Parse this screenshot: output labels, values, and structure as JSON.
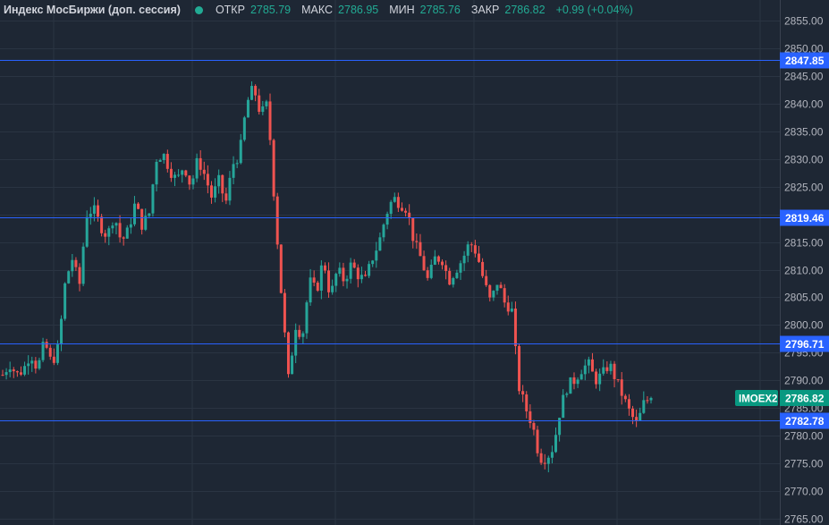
{
  "header": {
    "title": "Индекс МосБиржи (доп. сессия)",
    "open_label": "ОТКР",
    "open_value": "2785.79",
    "high_label": "МАКС",
    "high_value": "2786.95",
    "low_label": "МИН",
    "low_value": "2785.76",
    "close_label": "ЗАКР",
    "close_value": "2786.82",
    "change": "+0.99 (+0.04%)"
  },
  "colors": {
    "background": "#1e2734",
    "grid": "#2a3442",
    "up": "#26a69a",
    "down": "#ef5350",
    "level_line": "#2962ff",
    "level_label_bg": "#2962ff",
    "price_label_bg": "#089981",
    "status_green": "#22ab94"
  },
  "chart_data": {
    "type": "candlestick",
    "title": "Индекс МосБиржи (доп. сессия)",
    "y_axis_side": "right",
    "ylim": [
      2765,
      2857
    ],
    "y_ticks": [
      "2855.00",
      "2850.00",
      "2845.00",
      "2840.00",
      "2835.00",
      "2830.00",
      "2825.00",
      "2820.00",
      "2815.00",
      "2810.00",
      "2805.00",
      "2800.00",
      "2795.00",
      "2790.00",
      "2785.00",
      "2780.00",
      "2775.00",
      "2770.00",
      "2765.00"
    ],
    "levels": [
      {
        "value": 2847.85,
        "label": "2847.85"
      },
      {
        "value": 2819.46,
        "label": "2819.46"
      },
      {
        "value": 2796.71,
        "label": "2796.71"
      },
      {
        "value": 2782.78,
        "label": "2782.78"
      }
    ],
    "current_price": {
      "symbol": "IMOEX2",
      "value": 2786.82,
      "label": "2786.82"
    },
    "price_path": [
      2791,
      2793,
      2791,
      2792,
      2795,
      2792,
      2797,
      2793,
      2796,
      2808,
      2812,
      2807,
      2820,
      2821,
      2818,
      2816,
      2820,
      2815,
      2817,
      2822,
      2818,
      2820,
      2830,
      2831,
      2828,
      2826,
      2829,
      2825,
      2830,
      2827,
      2823,
      2826,
      2822,
      2829,
      2831,
      2840,
      2843,
      2838,
      2840,
      2822,
      2805,
      2790,
      2800,
      2798,
      2808,
      2806,
      2812,
      2805,
      2810,
      2808,
      2811,
      2809,
      2808,
      2812,
      2815,
      2820,
      2823,
      2822,
      2821,
      2815,
      2812,
      2808,
      2812,
      2812,
      2808,
      2810,
      2812,
      2815,
      2813,
      2808,
      2804,
      2808,
      2804,
      2803,
      2789,
      2785,
      2782,
      2776,
      2776,
      2778,
      2785,
      2789,
      2790,
      2792,
      2793,
      2790,
      2791,
      2793,
      2790,
      2787,
      2784,
      2782,
      2786,
      2787
    ]
  }
}
